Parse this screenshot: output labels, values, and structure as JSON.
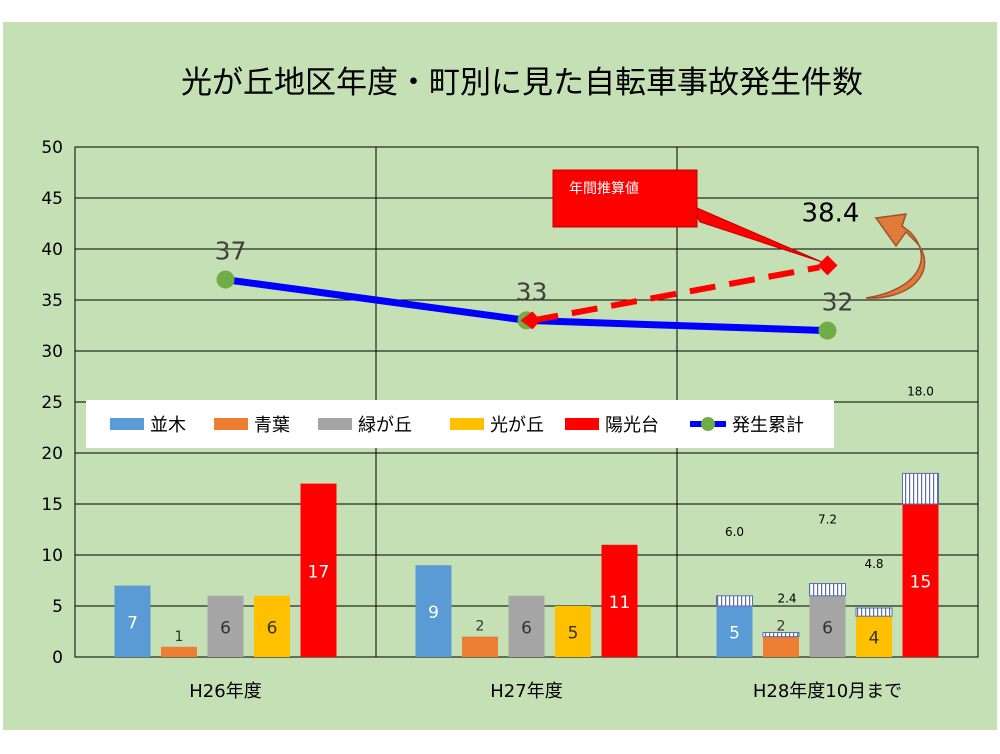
{
  "chart_data": {
    "type": "bar",
    "title": "光が丘地区年度・町別に見た自転車事故発生件数",
    "categories": [
      "H26年度",
      "H27年度",
      "H28年度10月まで"
    ],
    "ylim": [
      0,
      50
    ],
    "yticks": [
      0,
      5,
      10,
      15,
      20,
      25,
      30,
      35,
      40,
      45,
      50
    ],
    "grid": true,
    "legend_position": "middle-left",
    "series": [
      {
        "name": "並木",
        "color": "#5b9bd5",
        "values": [
          7,
          9,
          5
        ],
        "labels": [
          "7",
          "9",
          "5"
        ]
      },
      {
        "name": "青葉",
        "color": "#ed7d31",
        "values": [
          1,
          2,
          2
        ],
        "labels": [
          "1",
          "2",
          "2"
        ]
      },
      {
        "name": "緑が丘",
        "color": "#a5a5a5",
        "values": [
          6,
          6,
          6
        ],
        "labels": [
          "6",
          "6",
          "6"
        ]
      },
      {
        "name": "光が丘",
        "color": "#ffc000",
        "values": [
          6,
          5,
          4
        ],
        "labels": [
          "6",
          "5",
          "4"
        ]
      },
      {
        "name": "陽光台",
        "color": "#ff0000",
        "values": [
          17,
          11,
          15
        ],
        "labels": [
          "17",
          "11",
          "15"
        ]
      }
    ],
    "estimated_totals": {
      "values": [
        6.0,
        2.4,
        7.2,
        4.8,
        18.0
      ],
      "labels": [
        "6.0",
        "2.4",
        "7.2",
        "4.8",
        "18.0"
      ]
    },
    "line_series": {
      "name": "発生累計",
      "line_color": "#0000ff",
      "marker_color": "#70ad47",
      "values": [
        37,
        33,
        32
      ],
      "labels": [
        "37",
        "33",
        "32"
      ]
    },
    "projection": {
      "value": 38.4,
      "label": "38.4",
      "callout": "年間推算値"
    }
  },
  "colors": {
    "plot_background": "#c5e0b4",
    "projection_line": "#ff0000",
    "arrow": "#e07b39"
  }
}
